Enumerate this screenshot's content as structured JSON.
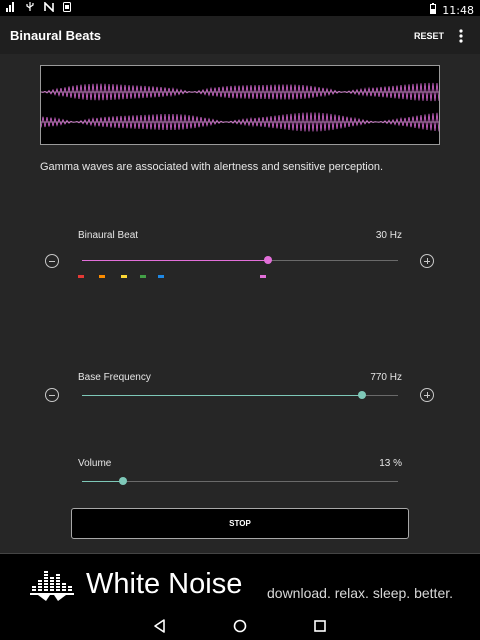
{
  "status_bar": {
    "time": "11:48",
    "icons": [
      "signal-bars-icon",
      "usb-icon",
      "nfc-icon",
      "sim-card-icon",
      "battery-icon"
    ]
  },
  "app_bar": {
    "title": "Binaural Beats",
    "reset_label": "RESET",
    "menu_icon": "more-vert-icon"
  },
  "colors": {
    "beat_accent": "#e26fd9",
    "frequency_accent": "#7ec8b8",
    "waveform": "#d86bd4",
    "presets": [
      "#e53935",
      "#fb8c00",
      "#fdd835",
      "#43a047",
      "#1e88e5",
      "#e26fd9"
    ]
  },
  "description": "Gamma waves are associated with alertness and sensitive perception.",
  "binaural_beat": {
    "label": "Binaural Beat",
    "value": "30 Hz",
    "level": 0.59,
    "preset_positions": [
      0.0,
      0.065,
      0.135,
      0.195,
      0.25,
      0.57
    ]
  },
  "base_frequency": {
    "label": "Base Frequency",
    "value": "770 Hz",
    "level": 0.885
  },
  "volume": {
    "label": "Volume",
    "value": "13 %",
    "level": 0.13
  },
  "stop_label": "STOP",
  "banner": {
    "brand": "White Noise",
    "tagline": "download. relax. sleep. better.",
    "logo_icon": "equalizer-bars-icon"
  },
  "nav_bar": {
    "icons": [
      "back-icon",
      "home-icon",
      "recents-icon"
    ]
  }
}
